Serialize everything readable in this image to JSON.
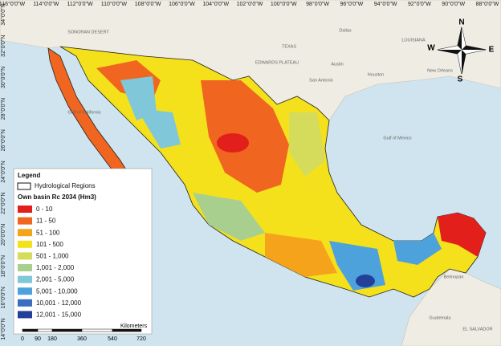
{
  "graticule": {
    "top": [
      "116°0'0\"W",
      "114°0'0\"W",
      "112°0'0\"W",
      "110°0'0\"W",
      "108°0'0\"W",
      "106°0'0\"W",
      "104°0'0\"W",
      "102°0'0\"W",
      "100°0'0\"W",
      "98°0'0\"W",
      "96°0'0\"W",
      "94°0'0\"W",
      "92°0'0\"W",
      "90°0'0\"W",
      "88°0'0\"W"
    ],
    "left": [
      "34°0'0\"N",
      "32°0'0\"N",
      "30°0'0\"N",
      "28°0'0\"N",
      "26°0'0\"N",
      "24°0'0\"N",
      "22°0'0\"N",
      "20°0'0\"N",
      "18°0'0\"N",
      "16°0'0\"N",
      "14°0'0\"N"
    ]
  },
  "legend": {
    "title": "Legend",
    "boundary": "Hydrological Regions",
    "subtitle": "Own basin Rc 2034 (Hm3)",
    "classes": [
      {
        "label": "0 - 10",
        "color": "#e31f1c"
      },
      {
        "label": "11 - 50",
        "color": "#f0651f"
      },
      {
        "label": "51 - 100",
        "color": "#f6a31c"
      },
      {
        "label": "101 - 500",
        "color": "#f4e11b"
      },
      {
        "label": "501 - 1,000",
        "color": "#d5dc5c"
      },
      {
        "label": "1,001 - 2,000",
        "color": "#a9cf8f"
      },
      {
        "label": "2,001 - 5,000",
        "color": "#7fc7d9"
      },
      {
        "label": "5,001 - 10,000",
        "color": "#4ea2dc"
      },
      {
        "label": "10,001 - 12,000",
        "color": "#3a6ec1"
      },
      {
        "label": "12,001 - 15,000",
        "color": "#22409a"
      }
    ]
  },
  "scale_bar": {
    "ticks": [
      "0",
      "90",
      "180",
      "360",
      "540",
      "720"
    ],
    "unit": "Kilometers"
  },
  "compass": {
    "north": "N",
    "south": "S",
    "east": "E",
    "west": "W"
  },
  "place_labels": [
    "SONORAN DESERT",
    "Dallas",
    "TEXAS",
    "EDWARDS PLATEAU",
    "Austin",
    "San Antonio",
    "Houston",
    "LOUISIANA",
    "New Orleans",
    "Gulf of Mexico",
    "Gulf of California",
    "Belmopan",
    "Guatemala",
    "EL SALVADOR"
  ]
}
